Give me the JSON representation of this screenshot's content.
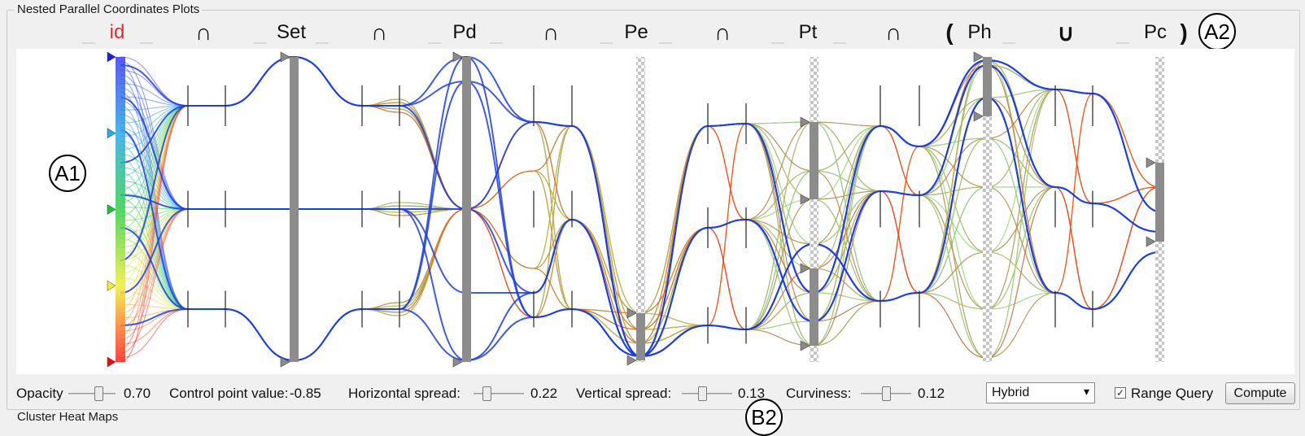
{
  "panel_title": "Nested Parallel Coordinates Plots",
  "second_panel_title": "Cluster Heat Maps",
  "callouts": [
    "A1",
    "A2",
    "B2"
  ],
  "axes": [
    {
      "label": "id",
      "color": "#e8272a"
    },
    {
      "label": "Set"
    },
    {
      "label": "Pd"
    },
    {
      "label": "Pe"
    },
    {
      "label": "Pt"
    },
    {
      "label": "Ph"
    },
    {
      "label": "Pc"
    }
  ],
  "operators": [
    "∩",
    "∩",
    "∩",
    "∩",
    "∩",
    "(",
    "∪",
    ")"
  ],
  "controls": {
    "opacity_label": "Opacity",
    "opacity_value": "0.70",
    "control_point_label": "Control point value:",
    "control_point_value": "-0.85",
    "hspread_label": "Horizontal spread:",
    "hspread_value": "0.22",
    "vspread_label": "Vertical spread:",
    "vspread_value": "0.13",
    "curviness_label": "Curviness:",
    "curviness_value": "0.12",
    "mode_selected": "Hybrid",
    "range_query_label": "Range Query",
    "range_query_checked": true,
    "compute_label": "Compute"
  },
  "colors": {
    "axis_bar": "#8c8c8c",
    "id_gradient": [
      "#3b3bf0",
      "#2aa9e6",
      "#34d04a",
      "#f0ee3a",
      "#ff2020"
    ],
    "line_primary": "#1f3fd8"
  }
}
